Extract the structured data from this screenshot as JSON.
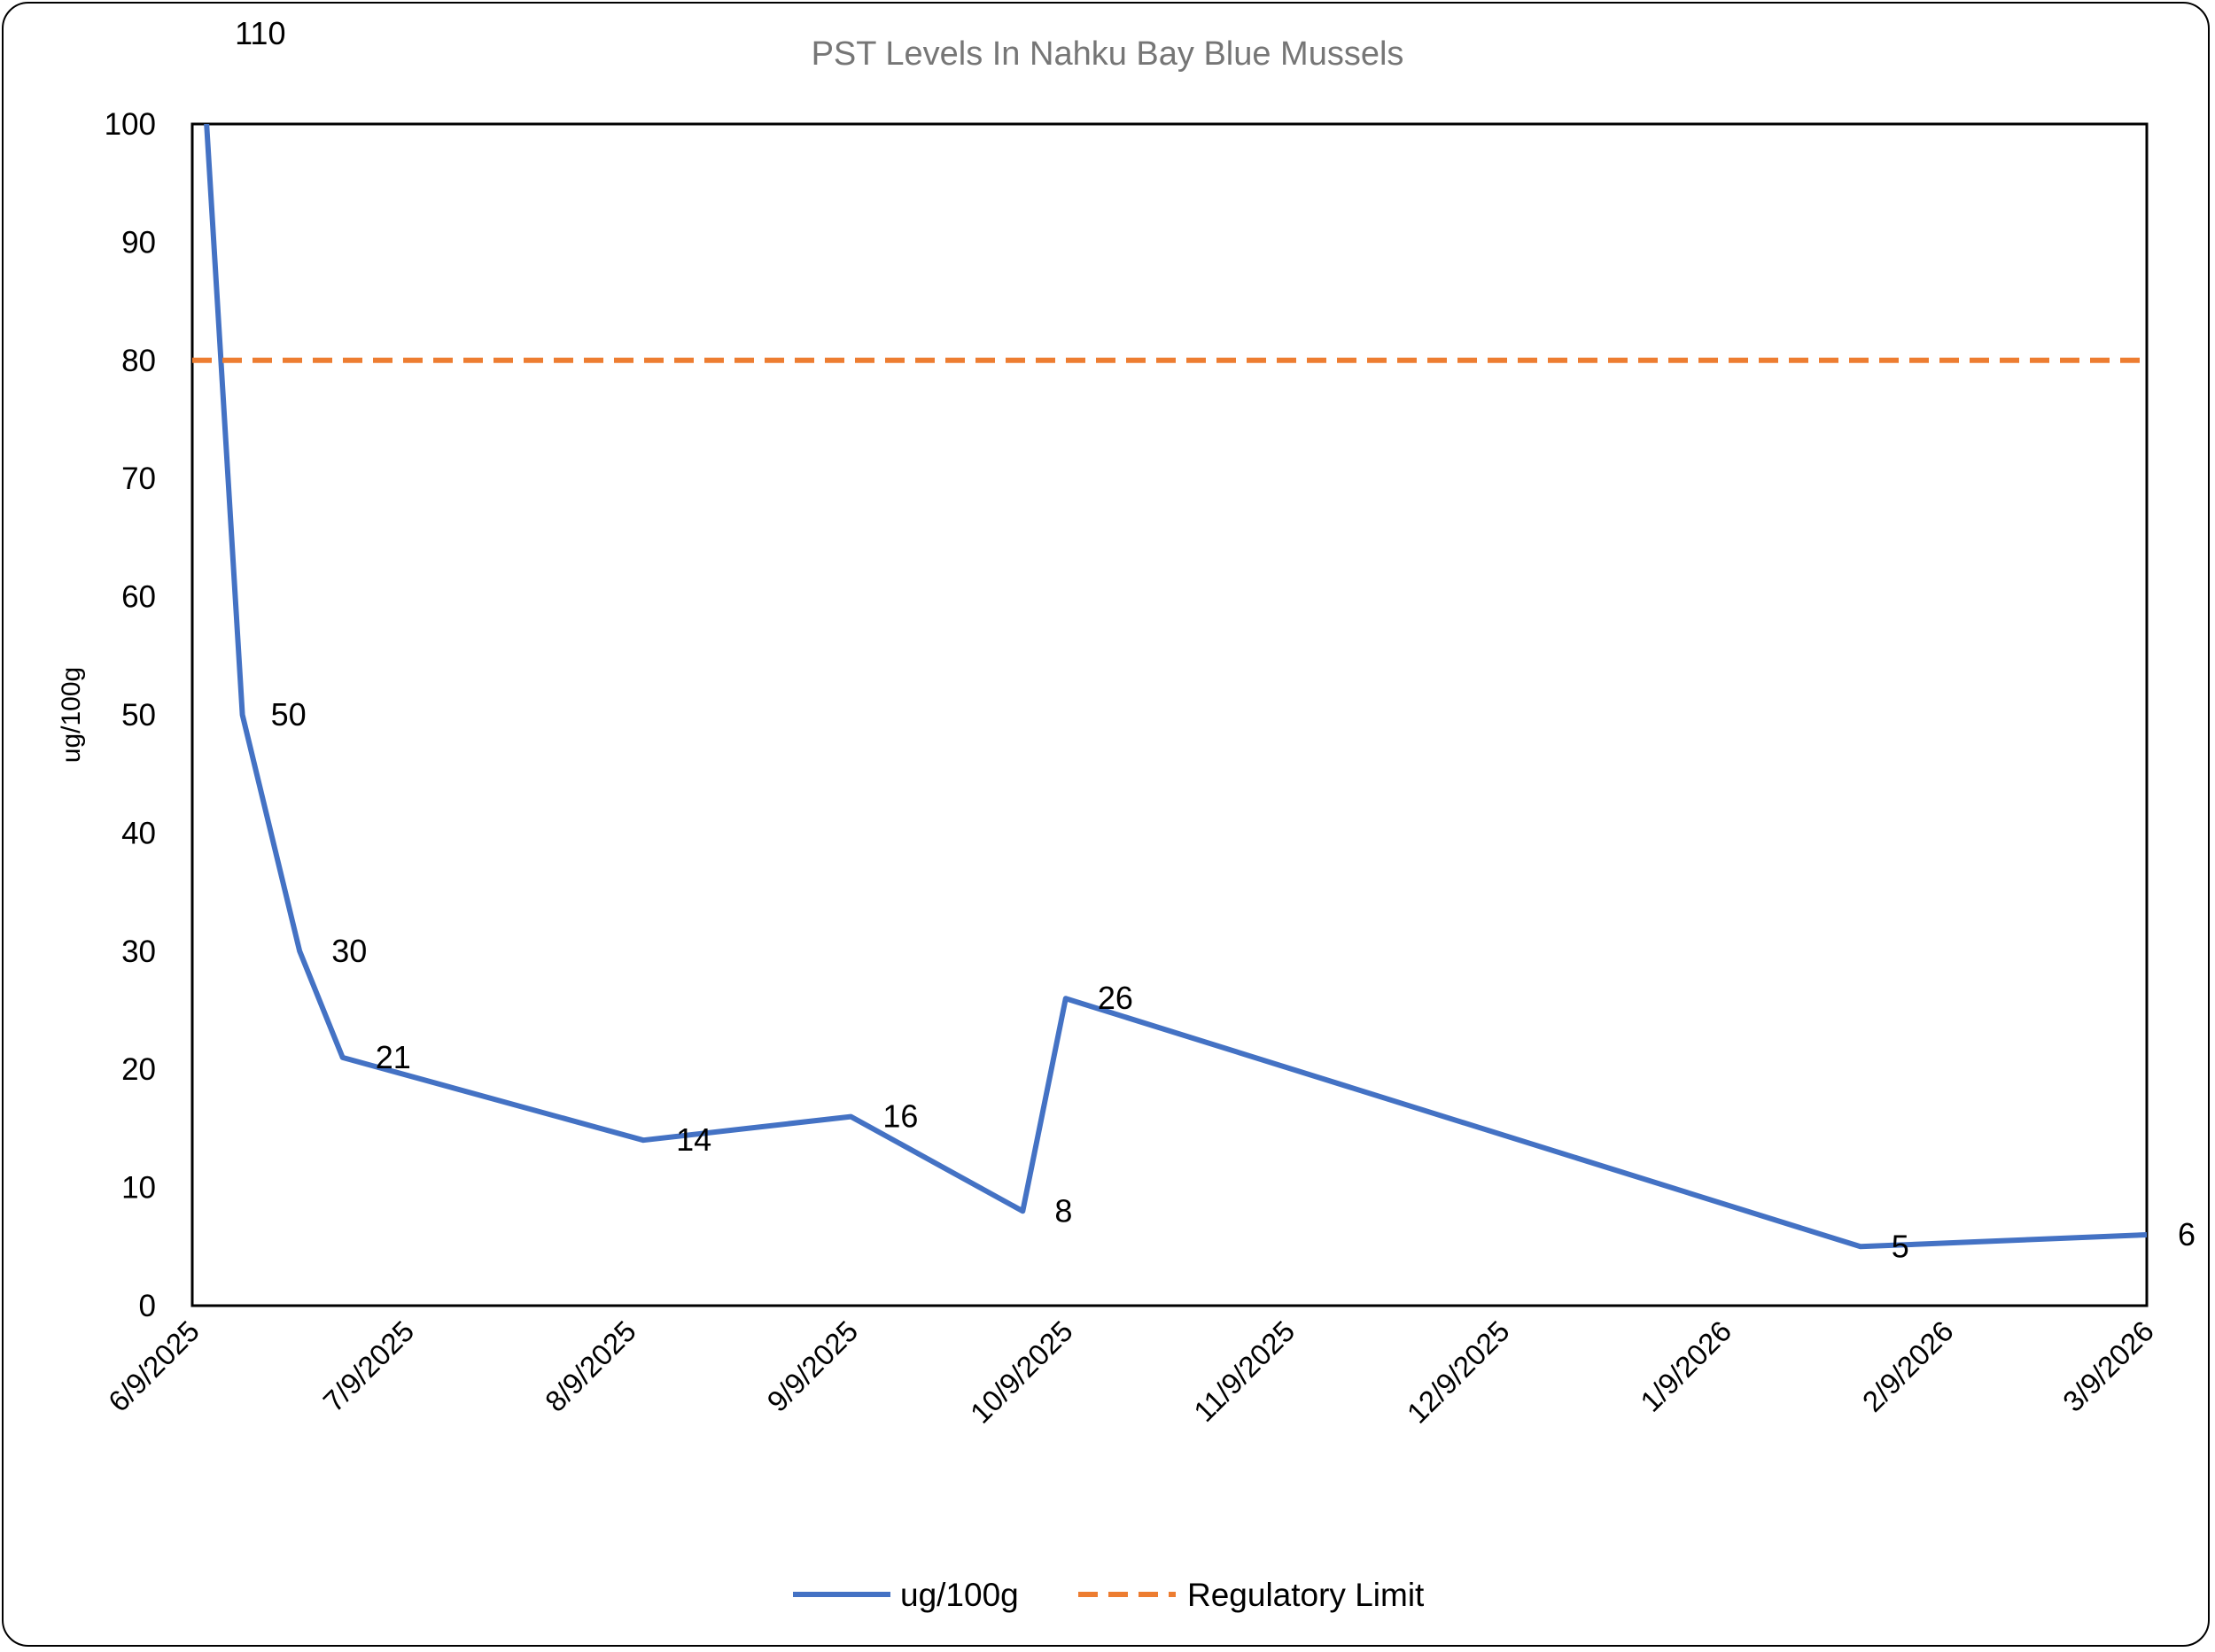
{
  "chart_data": {
    "type": "line",
    "title": "PST Levels In Nahku Bay Blue Mussels",
    "ylabel": "ug/100g",
    "xlabel": "",
    "ylim": [
      0,
      100
    ],
    "yticks": [
      0,
      10,
      20,
      30,
      40,
      50,
      60,
      70,
      80,
      90,
      100
    ],
    "xticks": [
      "6/9/2025",
      "7/9/2025",
      "8/9/2025",
      "9/9/2025",
      "10/9/2025",
      "11/9/2025",
      "12/9/2025",
      "1/9/2026",
      "2/9/2026",
      "3/9/2026"
    ],
    "xlim": [
      "6/9/2025",
      "3/9/2026"
    ],
    "grid": false,
    "legend_position": "bottom",
    "series": [
      {
        "name": "ug/100g",
        "color": "#4472C4",
        "style": "solid",
        "x": [
          "6/10/2025",
          "6/16/2025",
          "6/24/2025",
          "6/30/2025",
          "8/11/2025",
          "9/9/2025",
          "10/3/2025",
          "10/9/2025",
          "1/28/2026",
          "3/9/2026"
        ],
        "y": [
          110,
          50,
          30,
          21,
          14,
          16,
          8,
          26,
          5,
          6
        ],
        "labels": [
          "110",
          "50",
          "30",
          "21",
          "14",
          "16",
          "8",
          "26",
          "5",
          "6"
        ]
      },
      {
        "name": "Regulatory Limit",
        "color": "#ED7D31",
        "style": "dashed",
        "x": [
          "6/9/2025",
          "3/9/2026"
        ],
        "y": [
          80,
          80
        ]
      }
    ]
  }
}
